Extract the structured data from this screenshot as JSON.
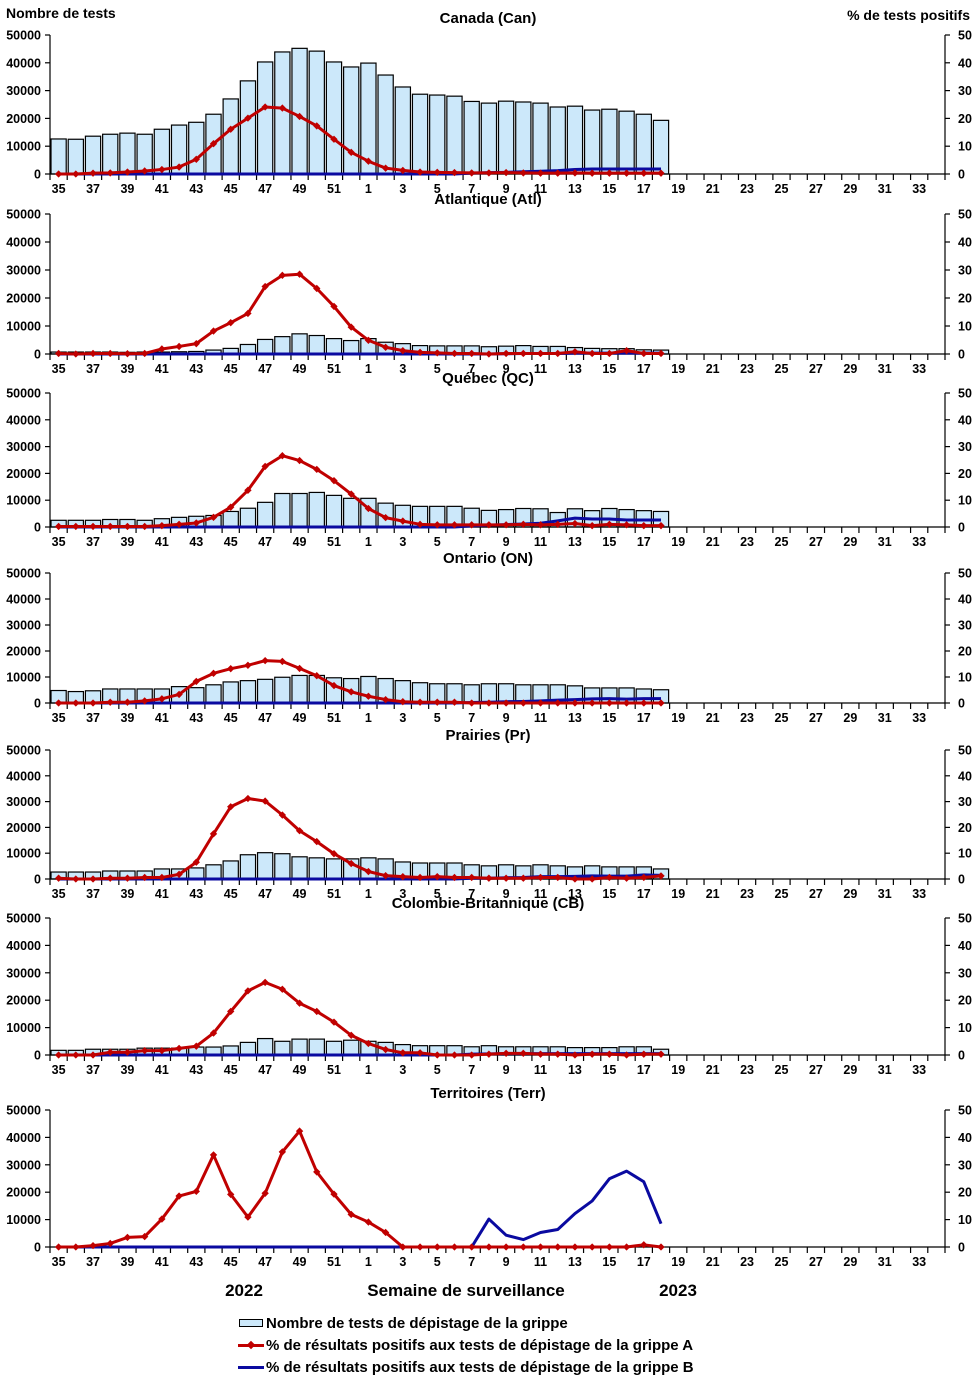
{
  "chart_data": {
    "type": "bar",
    "left_axis_title": "Nombre de tests",
    "right_axis_title": "% de tests positifs",
    "xlabel": "Semaine de surveillance",
    "year_labels": [
      "2022",
      "2023"
    ],
    "left_ylim": [
      0,
      50000
    ],
    "left_yticks": [
      "0",
      "10000",
      "20000",
      "30000",
      "40000",
      "50000"
    ],
    "right_ylim": [
      0,
      50
    ],
    "right_yticks": [
      "0",
      "10",
      "20",
      "30",
      "40",
      "50"
    ],
    "weeks": [
      35,
      36,
      37,
      38,
      39,
      40,
      41,
      42,
      43,
      44,
      45,
      46,
      47,
      48,
      49,
      50,
      51,
      52,
      1,
      2,
      3,
      4,
      5,
      6,
      7,
      8,
      9,
      10,
      11,
      12,
      13,
      14,
      15,
      16,
      17,
      18,
      19,
      20,
      21,
      22,
      23,
      24,
      25,
      26,
      27,
      28,
      29,
      30,
      31,
      32,
      33,
      34
    ],
    "xtick_labels": [
      "35",
      "37",
      "39",
      "41",
      "43",
      "45",
      "47",
      "49",
      "51",
      "1",
      "3",
      "5",
      "7",
      "9",
      "11",
      "13",
      "15",
      "17",
      "19",
      "21",
      "23",
      "25",
      "27",
      "29",
      "31",
      "33"
    ],
    "colors": {
      "bars": "#cce8fa",
      "bar_border": "#000000",
      "flu_a": "#c00000",
      "flu_b": "#0a0aa0"
    },
    "legend": [
      {
        "label": "Nombre de tests de dépistage de la grippe",
        "type": "bar"
      },
      {
        "label": "% de résultats positifs aux tests de dépistage de la grippe A",
        "type": "line-marker"
      },
      {
        "label": "% de résultats positifs aux tests de dépistage de la grippe B",
        "type": "line"
      }
    ],
    "panels": [
      {
        "title": "Canada (Can)",
        "tests": [
          12600,
          12500,
          13600,
          14300,
          14700,
          14300,
          16100,
          17600,
          18600,
          21500,
          27000,
          33500,
          40300,
          43900,
          45200,
          44200,
          40300,
          38500,
          39900,
          35600,
          31300,
          28700,
          28400,
          28000,
          26100,
          25500,
          26200,
          25900,
          25500,
          24100,
          24400,
          23000,
          23300,
          22600,
          21500,
          19300
        ],
        "flu_a": [
          0,
          0,
          0.3,
          0.4,
          0.7,
          1.1,
          1.6,
          2.5,
          5.3,
          10.9,
          16.1,
          20.1,
          24.1,
          23.7,
          20.7,
          17.3,
          12.5,
          7.8,
          4.6,
          2.1,
          1.3,
          0.7,
          0.6,
          0.5,
          0.4,
          0.4,
          0.5,
          0.4,
          0.3,
          0.3,
          0.4,
          0.3,
          0.3,
          0.3,
          0.3,
          0.3
        ],
        "flu_b": [
          0,
          0,
          0,
          0,
          0,
          0,
          0,
          0,
          0,
          0,
          0,
          0,
          0,
          0,
          0,
          0,
          0,
          0,
          0,
          0,
          0,
          0,
          0,
          0,
          0.3,
          0.5,
          0.6,
          0.8,
          1.0,
          1.2,
          1.6,
          1.8,
          1.8,
          1.8,
          1.8,
          1.8
        ]
      },
      {
        "title": "Atlantique (Atl)",
        "tests": [
          700,
          700,
          700,
          700,
          600,
          700,
          700,
          800,
          900,
          1400,
          2000,
          3400,
          5200,
          6200,
          7200,
          6600,
          5500,
          4800,
          5500,
          4200,
          3700,
          3000,
          2900,
          2900,
          2900,
          2600,
          2800,
          3000,
          2700,
          2700,
          2300,
          2000,
          1900,
          1900,
          1500,
          1400
        ],
        "flu_a": [
          0.2,
          0,
          0.2,
          0.2,
          0.1,
          0.2,
          1.8,
          2.7,
          3.7,
          8.2,
          11.2,
          14.5,
          24.1,
          28.1,
          28.5,
          23.4,
          17.0,
          9.6,
          4.9,
          2.4,
          1.2,
          0.6,
          0.4,
          0.2,
          0.2,
          0,
          0.2,
          0.2,
          0.2,
          0.2,
          0.8,
          0.2,
          0.2,
          1.2,
          0.2,
          0.2
        ],
        "flu_b": [
          0,
          0,
          0,
          0,
          0,
          0,
          0,
          0,
          0,
          0,
          0,
          0,
          0,
          0,
          0,
          0,
          0,
          0,
          0,
          0,
          0,
          0,
          0,
          0,
          0,
          0,
          0.1,
          0.2,
          0.2,
          0.2,
          0.3,
          0.3,
          0.3,
          0.3,
          0.3,
          0.3
        ]
      },
      {
        "title": "Québec (QC)",
        "tests": [
          2500,
          2500,
          2500,
          2800,
          2800,
          2500,
          3100,
          3600,
          4000,
          4300,
          5800,
          7000,
          9200,
          12500,
          12500,
          12900,
          11800,
          10700,
          10700,
          8900,
          8100,
          7700,
          7700,
          7700,
          7000,
          6200,
          6500,
          6900,
          6800,
          5400,
          6800,
          6100,
          6900,
          6500,
          6100,
          5800
        ],
        "flu_a": [
          0.2,
          0.2,
          0.2,
          0.2,
          0.2,
          0.2,
          0.5,
          1.0,
          1.5,
          3.6,
          7.4,
          13.7,
          22.6,
          26.6,
          24.8,
          21.5,
          17.3,
          12.3,
          6.9,
          3.5,
          2.2,
          1.0,
          0.8,
          0.8,
          0.8,
          0.8,
          0.8,
          1.0,
          0.8,
          1.0,
          1.3,
          0.5,
          1.0,
          0.8,
          0.5,
          0.5
        ],
        "flu_b": [
          0,
          0,
          0,
          0,
          0,
          0,
          0,
          0,
          0,
          0,
          0,
          0,
          0,
          0,
          0,
          0,
          0,
          0,
          0,
          0,
          0,
          0,
          0,
          0,
          0.4,
          0.7,
          0.9,
          1.1,
          1.4,
          2.3,
          3.3,
          3.0,
          3.0,
          2.6,
          2.6,
          2.6
        ]
      },
      {
        "title": "Ontario (ON)",
        "tests": [
          4800,
          4400,
          4700,
          5400,
          5400,
          5400,
          5400,
          6300,
          5900,
          7000,
          8100,
          8600,
          9100,
          9900,
          10600,
          10600,
          9700,
          9400,
          10200,
          9400,
          8600,
          7800,
          7400,
          7400,
          7000,
          7400,
          7400,
          7000,
          7000,
          7000,
          6600,
          5800,
          5800,
          5800,
          5400,
          5100
        ],
        "flu_a": [
          0,
          0,
          0,
          0.3,
          0.3,
          0.8,
          1.6,
          3.3,
          8.3,
          11.4,
          13.2,
          14.5,
          16.3,
          16.0,
          13.3,
          10.5,
          6.7,
          4.3,
          2.6,
          1.3,
          0.5,
          0.3,
          0.3,
          0.3,
          0,
          0,
          0,
          0,
          0,
          0,
          0,
          0,
          0,
          0,
          0,
          0
        ],
        "flu_b": [
          0,
          0,
          0,
          0,
          0,
          0,
          0,
          0,
          0,
          0,
          0,
          0,
          0,
          0,
          0,
          0,
          0,
          0,
          0,
          0,
          0,
          0,
          0,
          0,
          0.2,
          0.3,
          0.5,
          0.6,
          0.8,
          1.1,
          1.3,
          1.6,
          1.7,
          1.5,
          1.7,
          1.7
        ]
      },
      {
        "title": "Prairies (Pr)",
        "tests": [
          2700,
          2700,
          2700,
          3100,
          3100,
          3100,
          3900,
          3900,
          4300,
          5500,
          7000,
          9400,
          10200,
          9800,
          8600,
          8200,
          7800,
          7800,
          8200,
          7800,
          6600,
          6200,
          6200,
          6200,
          5500,
          5100,
          5500,
          5100,
          5500,
          5100,
          4700,
          5100,
          4700,
          4700,
          4700,
          3900
        ],
        "flu_a": [
          0.3,
          0,
          0,
          0.3,
          0.3,
          0.6,
          0.6,
          1.8,
          6.5,
          17.5,
          28.0,
          31.2,
          30.2,
          24.8,
          18.7,
          14.5,
          9.8,
          6.0,
          2.9,
          1.3,
          0.9,
          0.6,
          0.9,
          0.6,
          0.6,
          0.3,
          0.3,
          0.3,
          0.6,
          0.6,
          0,
          0,
          0.6,
          0.3,
          0.6,
          1.2
        ],
        "flu_b": [
          0,
          0,
          0,
          0,
          0,
          0,
          0,
          0,
          0,
          0,
          0,
          0,
          0,
          0,
          0,
          0,
          0,
          0,
          0,
          0,
          0,
          0,
          0,
          0,
          0.3,
          0.3,
          0.5,
          0.6,
          0.9,
          0.9,
          1.0,
          1.2,
          1.1,
          1.1,
          1.6,
          1.4
        ]
      },
      {
        "title": "Colombie-Britannique (CB)",
        "tests": [
          1700,
          1700,
          2100,
          2100,
          2100,
          2500,
          2500,
          2500,
          2900,
          2900,
          3300,
          4600,
          6000,
          5000,
          5800,
          5800,
          5000,
          5400,
          5000,
          4600,
          3800,
          3400,
          3400,
          3400,
          3000,
          3400,
          3000,
          3000,
          3000,
          3000,
          2700,
          2700,
          2700,
          3000,
          3000,
          2100
        ],
        "flu_a": [
          0,
          0,
          0,
          1.0,
          1.0,
          1.6,
          1.6,
          2.4,
          3.2,
          8.0,
          15.9,
          23.4,
          26.5,
          24.0,
          18.9,
          15.9,
          12.0,
          7.2,
          4.2,
          2.0,
          0.8,
          0.8,
          0,
          0,
          0,
          0.3,
          0.6,
          0.6,
          0.3,
          0.3,
          0,
          0.3,
          0.3,
          0,
          0.3,
          0.3
        ],
        "flu_b": [
          0,
          0,
          0,
          0,
          0,
          0,
          0,
          0,
          0,
          0,
          0,
          0,
          0,
          0,
          0,
          0,
          0,
          0,
          0,
          0,
          0,
          0,
          0,
          0,
          0.3,
          0.4,
          0.5,
          0.5,
          0.5,
          0.5,
          0.5,
          0.5,
          0.5,
          0.5,
          0.5,
          0.5
        ]
      },
      {
        "title": "Territoires (Terr)",
        "tests": [
          10,
          10,
          10,
          10,
          10,
          10,
          10,
          10,
          10,
          10,
          10,
          10,
          10,
          10,
          10,
          10,
          10,
          10,
          10,
          10,
          10,
          10,
          10,
          10,
          10,
          10,
          10,
          10,
          10,
          10,
          10,
          10,
          10,
          10,
          10,
          10
        ],
        "flu_a": [
          0,
          0,
          0.5,
          1.3,
          3.5,
          3.8,
          10.2,
          18.6,
          20.3,
          33.6,
          19.2,
          10.9,
          19.6,
          34.7,
          42.3,
          27.4,
          19.3,
          11.9,
          9.1,
          5.3,
          0,
          0,
          0,
          0,
          0,
          0,
          0,
          0,
          0,
          0,
          0,
          0,
          0,
          0,
          0.8,
          0
        ],
        "flu_b": [
          0,
          0,
          0,
          0,
          0,
          0,
          0,
          0,
          0,
          0,
          0,
          0,
          0,
          0,
          0,
          0,
          0,
          0,
          0,
          0,
          0,
          0,
          0,
          0,
          0,
          10.2,
          4.3,
          2.7,
          5.3,
          6.4,
          12.2,
          16.8,
          24.9,
          27.7,
          23.8,
          8.5
        ]
      }
    ]
  }
}
